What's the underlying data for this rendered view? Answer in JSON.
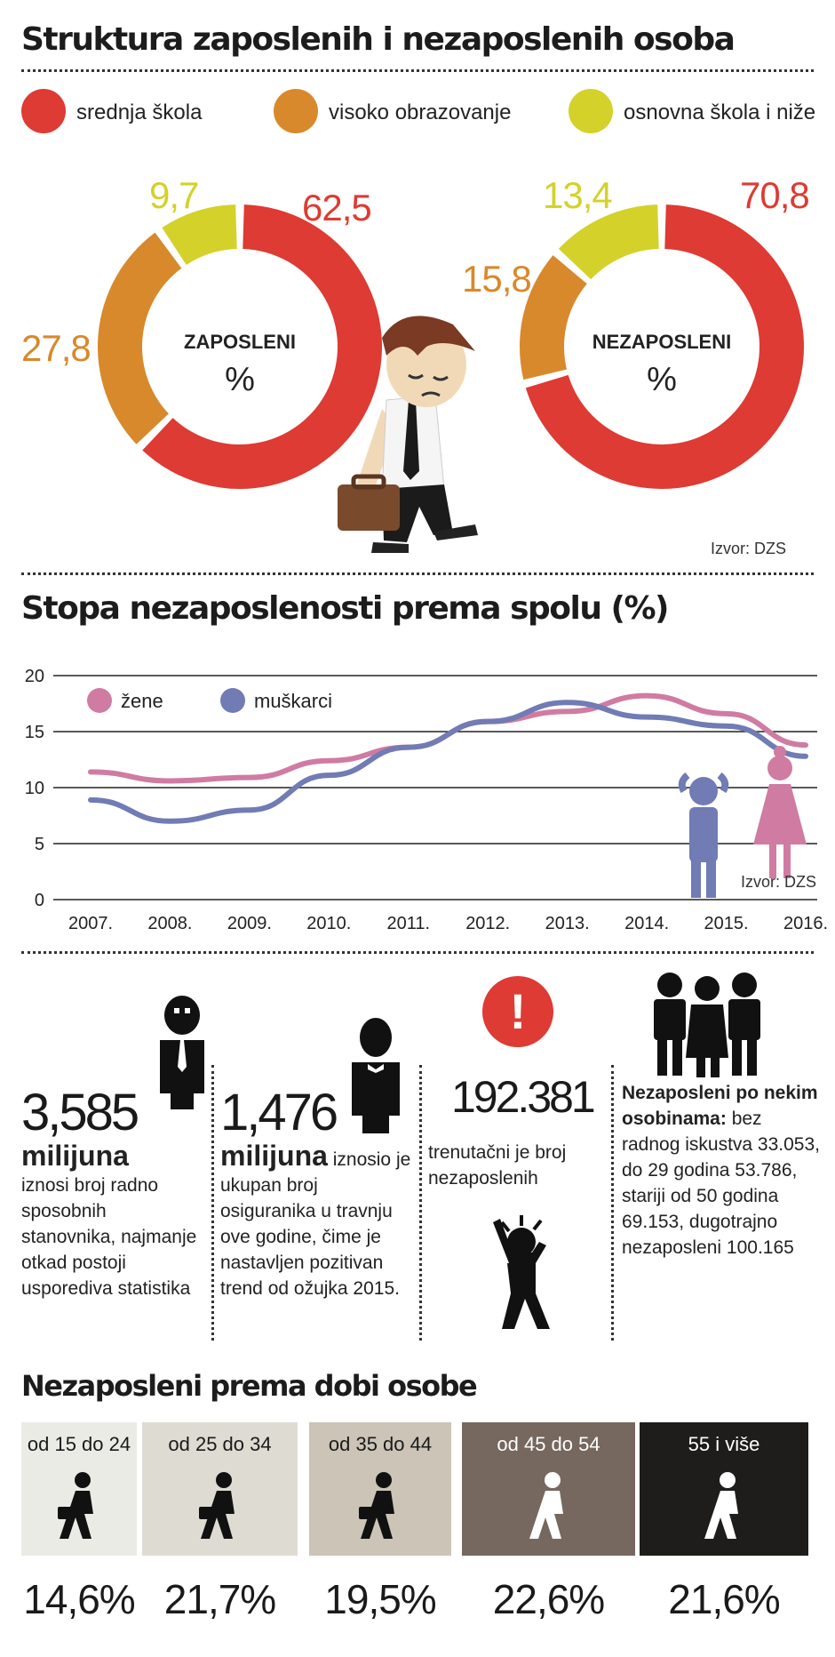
{
  "section1": {
    "title": "Struktura zaposlenih i nezaposlenih osoba",
    "legend": [
      {
        "label": "srednja škola",
        "color": "#dd3b33"
      },
      {
        "label": "visoko obrazovanje",
        "color": "#d8892b"
      },
      {
        "label": "osnovna škola i niže",
        "color": "#d4d12b"
      }
    ],
    "source": "Izvor: DZS"
  },
  "section2": {
    "title": "Stopa nezaposlenosti prema spolu (%)",
    "source": "Izvor: DZS"
  },
  "chart_data": [
    {
      "type": "pie",
      "center_label": "ZAPOSLENI",
      "unit": "%",
      "categories": [
        "srednja škola",
        "visoko obrazovanje",
        "osnovna škola i niže"
      ],
      "values": [
        62.5,
        27.8,
        9.7
      ],
      "value_labels": [
        "62,5",
        "27,8",
        "9,7"
      ],
      "colors": [
        "#dd3b33",
        "#d8892b",
        "#d4d12b"
      ]
    },
    {
      "type": "pie",
      "center_label": "NEZAPOSLENI",
      "unit": "%",
      "categories": [
        "srednja škola",
        "visoko obrazovanje",
        "osnovna škola i niže"
      ],
      "values": [
        70.8,
        15.8,
        13.4
      ],
      "value_labels": [
        "70,8",
        "15,8",
        "13,4"
      ],
      "colors": [
        "#dd3b33",
        "#d8892b",
        "#d4d12b"
      ]
    },
    {
      "type": "line",
      "categories": [
        "2007.",
        "2008.",
        "2009.",
        "2010.",
        "2011.",
        "2012.",
        "2013.",
        "2014.",
        "2015.",
        "2016."
      ],
      "series": [
        {
          "name": "žene",
          "color": "#d07ba2",
          "values": [
            11.4,
            10.6,
            10.9,
            12.4,
            13.6,
            15.9,
            16.8,
            18.2,
            16.6,
            13.8
          ]
        },
        {
          "name": "muškarci",
          "color": "#717bb4",
          "values": [
            8.9,
            7.0,
            8.0,
            11.1,
            13.6,
            15.9,
            17.6,
            16.3,
            15.5,
            12.8
          ]
        }
      ],
      "ylim": [
        0,
        20
      ],
      "yticks": [
        0,
        5,
        10,
        15,
        20
      ],
      "grid": true,
      "legend_position": "top-left"
    },
    {
      "type": "bar",
      "title": "Nezaposleni prema dobi  osobe",
      "categories": [
        "od 15 do 24",
        "od 25 do 34",
        "od 35 do 44",
        "od 45 do 54",
        "55 i više"
      ],
      "values": [
        14.6,
        21.7,
        19.5,
        22.6,
        21.6
      ],
      "value_labels": [
        "14,6%",
        "21,7%",
        "19,5%",
        "22,6%",
        "21,6%"
      ],
      "box_colors": [
        "#ebebe6",
        "#dedbd3",
        "#cbc4b7",
        "#76675f",
        "#1f1d1b"
      ],
      "label_colors": [
        "#1a1a1a",
        "#1a1a1a",
        "#1a1a1a",
        "#ffffff",
        "#ffffff"
      ]
    }
  ],
  "stats": {
    "s1": {
      "number": "3,585",
      "bold": "milijuna",
      "text": "iznosi broj radno sposobnih stanovnika, najmanje otkad postoji usporediva statistika"
    },
    "s2": {
      "number": "1,476",
      "bold": "milijuna",
      "text": " iznosio je ukupan broj osiguranika u travnju ove godine, čime je nastavljen pozitivan trend od ožujka 2015."
    },
    "s3": {
      "number": "192.381",
      "text": "trenutačni je broj nezaposlenih",
      "alert": "!"
    },
    "s4": {
      "bold": "Nezaposleni po nekim osobinama:",
      "text": " bez radnog iskustva 33.053, do 29 godina 53.786, stariji od 50 godina 69.153,  dugotrajno nezaposleni 100.165"
    }
  },
  "section4": {
    "title": "Nezaposleni prema dobi  osobe"
  }
}
